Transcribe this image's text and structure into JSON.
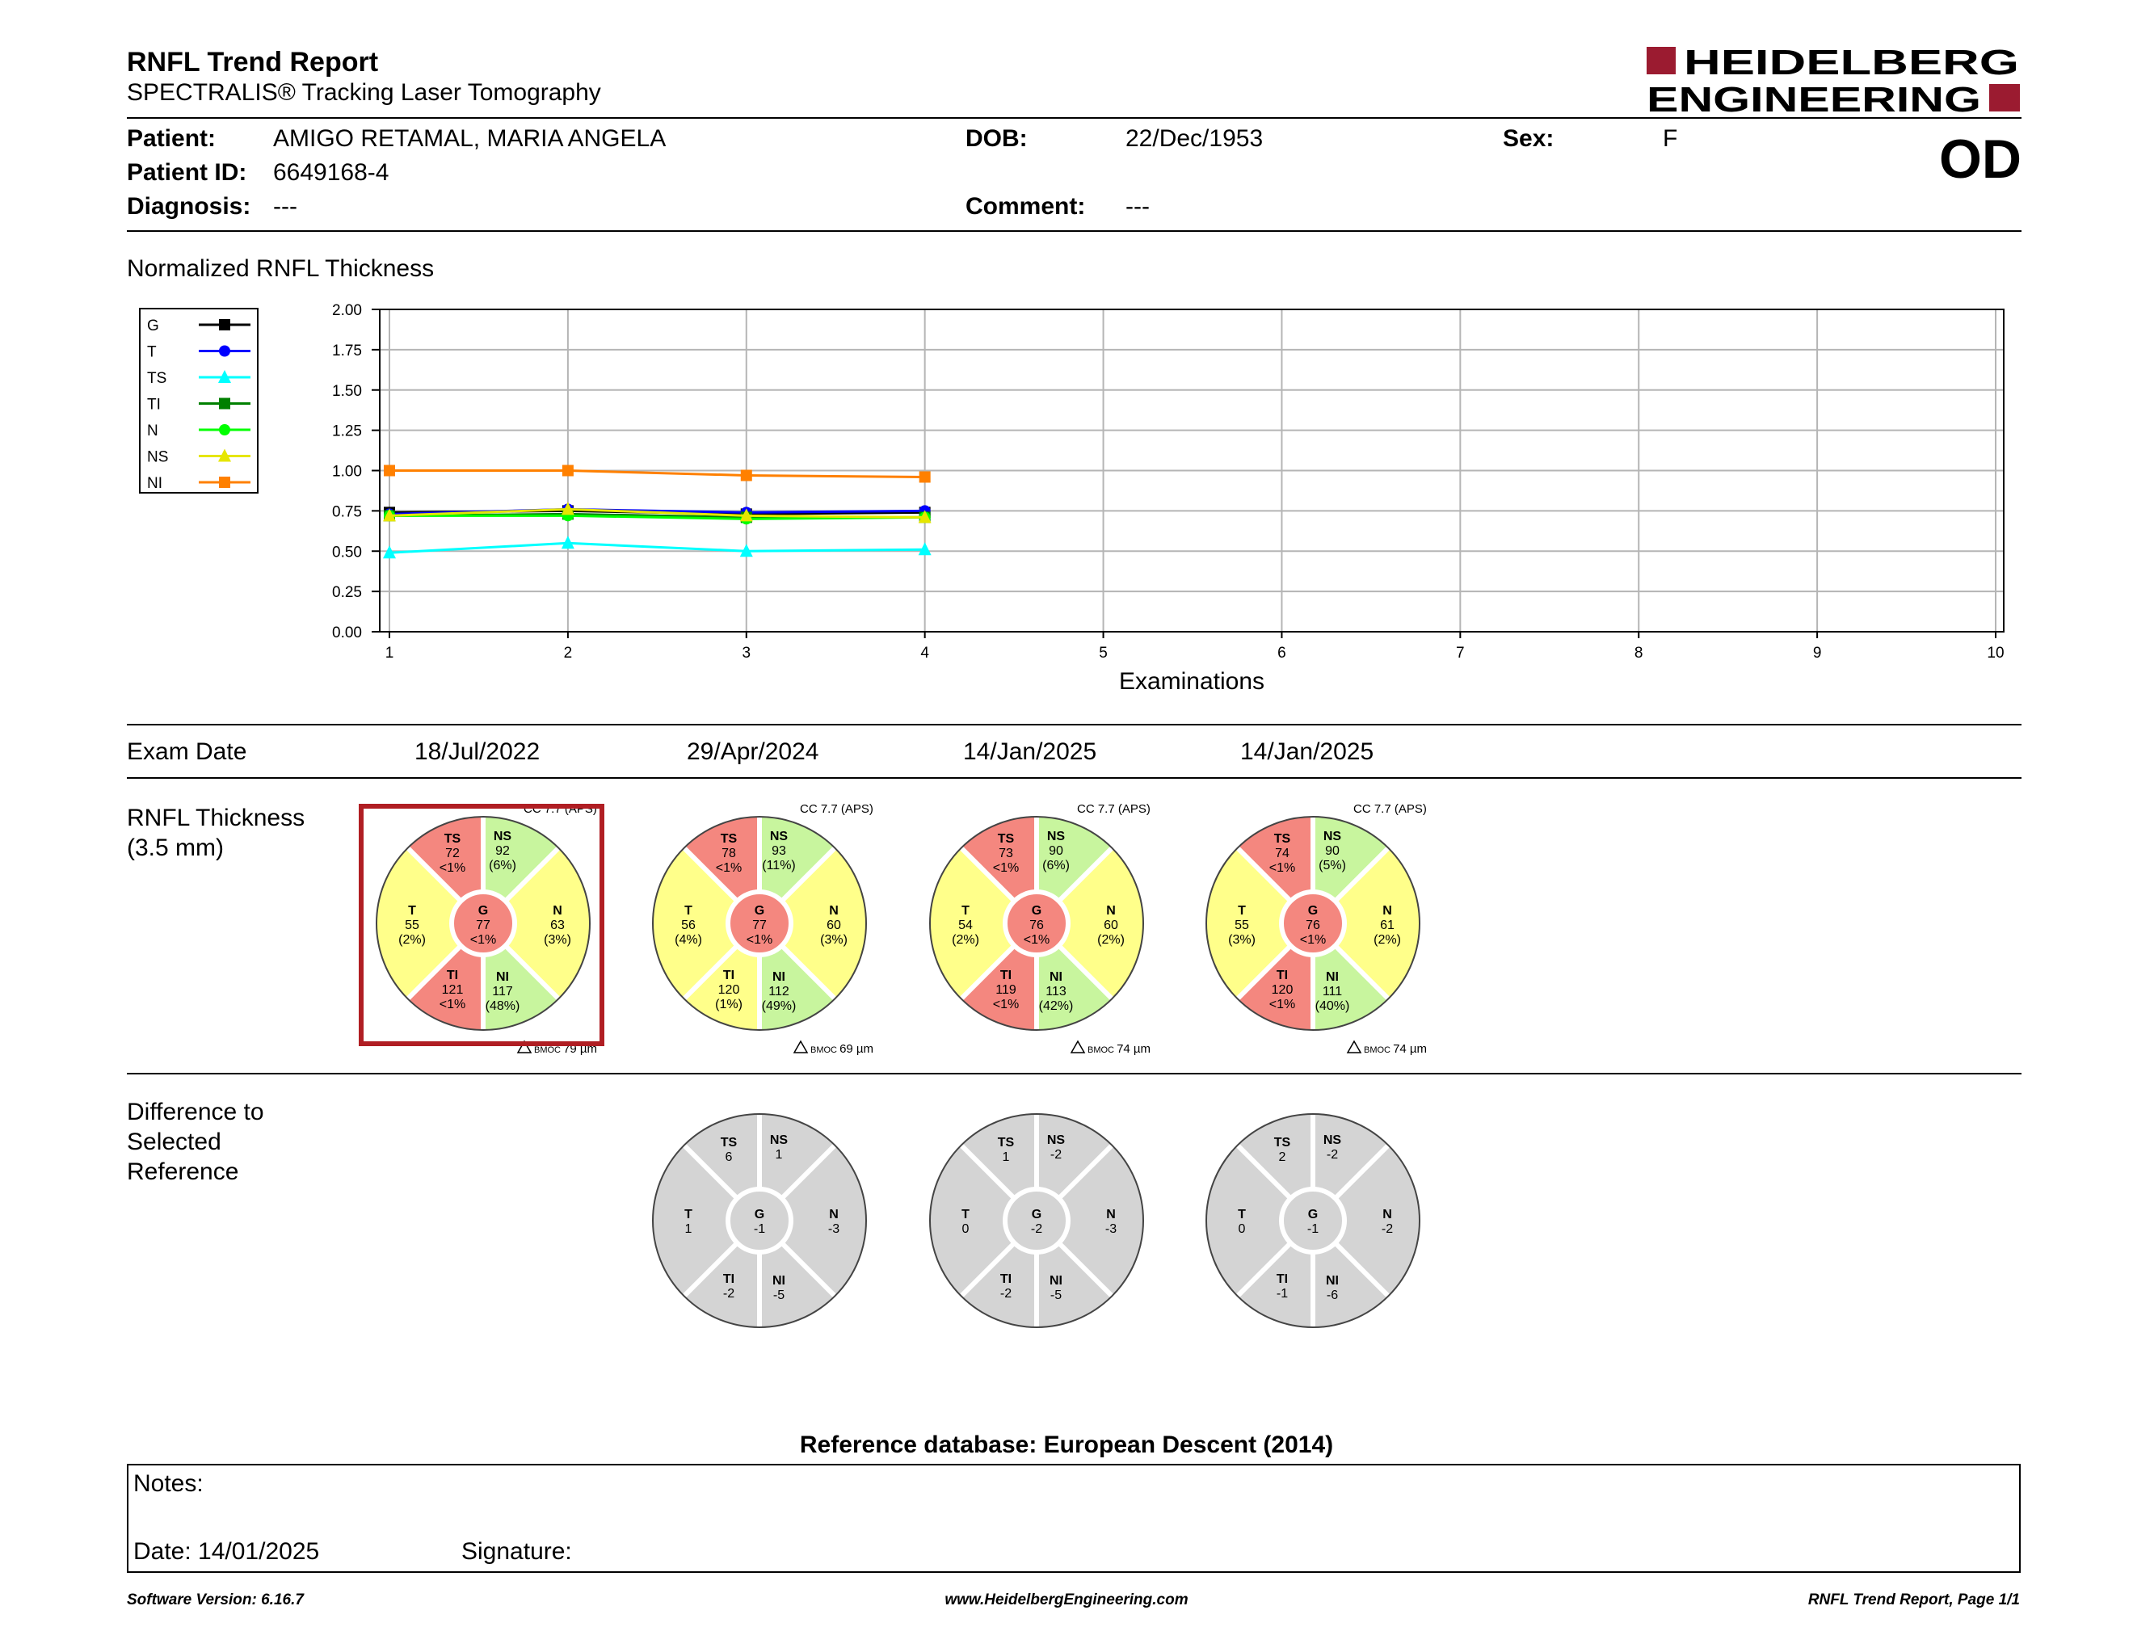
{
  "header": {
    "title": "RNFL Trend Report",
    "subtitle": "SPECTRALIS® Tracking Laser Tomography",
    "logo_line1": "HEIDELBERG",
    "logo_line2": "ENGINEERING",
    "eye": "OD",
    "brand_color": "#9b1b30"
  },
  "patient": {
    "patient_label": "Patient:",
    "patient_value": "AMIGO RETAMAL, MARIA ANGELA",
    "id_label": "Patient ID:",
    "id_value": "6649168-4",
    "diagnosis_label": "Diagnosis:",
    "diagnosis_value": "---",
    "dob_label": "DOB:",
    "dob_value": "22/Dec/1953",
    "comment_label": "Comment:",
    "comment_value": "---",
    "sex_label": "Sex:",
    "sex_value": "F"
  },
  "chart_data": {
    "type": "line",
    "title": "Normalized RNFL Thickness",
    "xlabel": "Examinations",
    "ylabel": "",
    "x_ticks": [
      1,
      2,
      3,
      4,
      5,
      6,
      7,
      8,
      9,
      10
    ],
    "y_ticks": [
      "0.00",
      "0.25",
      "0.50",
      "0.75",
      "1.00",
      "1.25",
      "1.50",
      "1.75",
      "2.00"
    ],
    "xlim": [
      1,
      10
    ],
    "ylim": [
      0,
      2
    ],
    "grid": true,
    "legend_position": "left",
    "x": [
      1,
      2,
      3,
      4
    ],
    "series": [
      {
        "name": "G",
        "color": "#000000",
        "marker": "square",
        "values": [
          0.74,
          0.75,
          0.73,
          0.74
        ]
      },
      {
        "name": "T",
        "color": "#0000ff",
        "marker": "circle",
        "values": [
          0.73,
          0.76,
          0.74,
          0.75
        ]
      },
      {
        "name": "TS",
        "color": "#00ffff",
        "marker": "triangle",
        "values": [
          0.49,
          0.55,
          0.5,
          0.51
        ]
      },
      {
        "name": "TI",
        "color": "#008000",
        "marker": "square",
        "values": [
          0.72,
          0.73,
          0.71,
          0.71
        ]
      },
      {
        "name": "N",
        "color": "#00ff00",
        "marker": "circle",
        "values": [
          0.72,
          0.72,
          0.7,
          0.71
        ]
      },
      {
        "name": "NS",
        "color": "#e6e600",
        "marker": "triangle",
        "values": [
          0.72,
          0.76,
          0.72,
          0.71
        ]
      },
      {
        "name": "NI",
        "color": "#ff8000",
        "marker": "square",
        "values": [
          1.0,
          1.0,
          0.97,
          0.96
        ]
      }
    ]
  },
  "exams": {
    "label": "Exam Date",
    "dates": [
      "18/Jul/2022",
      "29/Apr/2024",
      "14/Jan/2025",
      "14/Jan/2025"
    ]
  },
  "rnfl": {
    "label_line1": "RNFL Thickness",
    "label_line2": "(3.5 mm)",
    "colors": {
      "red": "#f4877f",
      "yellow": "#ffff8a",
      "green": "#c8f59e",
      "gray": "#d4d4d4",
      "selected_border": "#b01e23"
    },
    "selected_index": 0,
    "circles": [
      {
        "cc": "CC 7.7 (APS)",
        "bmoc": "BMOC 79 µm",
        "TS": {
          "v": "72",
          "p": "<1%",
          "c": "red"
        },
        "NS": {
          "v": "92",
          "p": "(6%)",
          "c": "green"
        },
        "T": {
          "v": "55",
          "p": "(2%)",
          "c": "yellow"
        },
        "G": {
          "v": "77",
          "p": "<1%",
          "c": "red"
        },
        "N": {
          "v": "63",
          "p": "(3%)",
          "c": "yellow"
        },
        "TI": {
          "v": "121",
          "p": "<1%",
          "c": "red"
        },
        "NI": {
          "v": "117",
          "p": "(48%)",
          "c": "green"
        }
      },
      {
        "cc": "CC 7.7 (APS)",
        "bmoc": "BMOC 69 µm",
        "TS": {
          "v": "78",
          "p": "<1%",
          "c": "red"
        },
        "NS": {
          "v": "93",
          "p": "(11%)",
          "c": "green"
        },
        "T": {
          "v": "56",
          "p": "(4%)",
          "c": "yellow"
        },
        "G": {
          "v": "77",
          "p": "<1%",
          "c": "red"
        },
        "N": {
          "v": "60",
          "p": "(3%)",
          "c": "yellow"
        },
        "TI": {
          "v": "120",
          "p": "(1%)",
          "c": "yellow"
        },
        "NI": {
          "v": "112",
          "p": "(49%)",
          "c": "green"
        }
      },
      {
        "cc": "CC 7.7 (APS)",
        "bmoc": "BMOC 74 µm",
        "TS": {
          "v": "73",
          "p": "<1%",
          "c": "red"
        },
        "NS": {
          "v": "90",
          "p": "(6%)",
          "c": "green"
        },
        "T": {
          "v": "54",
          "p": "(2%)",
          "c": "yellow"
        },
        "G": {
          "v": "76",
          "p": "<1%",
          "c": "red"
        },
        "N": {
          "v": "60",
          "p": "(2%)",
          "c": "yellow"
        },
        "TI": {
          "v": "119",
          "p": "<1%",
          "c": "red"
        },
        "NI": {
          "v": "113",
          "p": "(42%)",
          "c": "green"
        }
      },
      {
        "cc": "CC 7.7 (APS)",
        "bmoc": "BMOC 74 µm",
        "TS": {
          "v": "74",
          "p": "<1%",
          "c": "red"
        },
        "NS": {
          "v": "90",
          "p": "(5%)",
          "c": "green"
        },
        "T": {
          "v": "55",
          "p": "(3%)",
          "c": "yellow"
        },
        "G": {
          "v": "76",
          "p": "<1%",
          "c": "red"
        },
        "N": {
          "v": "61",
          "p": "(2%)",
          "c": "yellow"
        },
        "TI": {
          "v": "120",
          "p": "<1%",
          "c": "red"
        },
        "NI": {
          "v": "111",
          "p": "(40%)",
          "c": "green"
        }
      }
    ]
  },
  "difference": {
    "label_line1": "Difference to",
    "label_line2": "Selected",
    "label_line3": "Reference",
    "circles": [
      {
        "TS": "6",
        "NS": "1",
        "T": "1",
        "G": "-1",
        "N": "-3",
        "TI": "-2",
        "NI": "-5"
      },
      {
        "TS": "1",
        "NS": "-2",
        "T": "0",
        "G": "-2",
        "N": "-3",
        "TI": "-2",
        "NI": "-5"
      },
      {
        "TS": "2",
        "NS": "-2",
        "T": "0",
        "G": "-1",
        "N": "-2",
        "TI": "-1",
        "NI": "-6"
      }
    ]
  },
  "reference_db": "Reference database: European Descent (2014)",
  "notes": {
    "notes_label": "Notes:",
    "date_label": "Date: 14/01/2025",
    "signature_label": "Signature:"
  },
  "footer": {
    "software": "Software Version: 6.16.7",
    "website": "www.HeidelbergEngineering.com",
    "page": "RNFL Trend Report, Page 1/1"
  }
}
